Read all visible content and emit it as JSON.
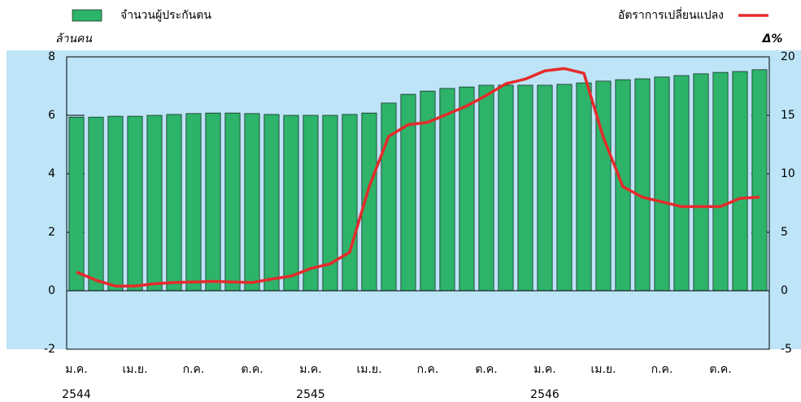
{
  "chart_data": {
    "type": "bar_line",
    "ylabel": "ล้านคน",
    "y2label": "Δ%",
    "categories": [
      "ม.ค.",
      null,
      null,
      "เม.ย.",
      null,
      null,
      "ก.ค.",
      null,
      null,
      "ต.ค.",
      null,
      null,
      "ม.ค.",
      null,
      null,
      "เม.ย.",
      null,
      null,
      "ก.ค.",
      null,
      null,
      "ต.ค.",
      null,
      null,
      "ม.ค.",
      null,
      null,
      "เม.ย.",
      null,
      null,
      "ก.ค.",
      null,
      null,
      "ต.ค.",
      null,
      null
    ],
    "years": [
      "2544",
      null,
      null,
      null,
      null,
      null,
      null,
      null,
      null,
      null,
      null,
      null,
      "2545",
      null,
      null,
      null,
      null,
      null,
      null,
      null,
      null,
      null,
      null,
      null,
      "2546",
      null,
      null,
      null,
      null,
      null,
      null,
      null,
      null,
      null,
      null,
      null
    ],
    "series": [
      {
        "name": "จำนวนผู้ประกันตน",
        "color": "#2db36a",
        "chart": "bar",
        "values": [
          5.94,
          5.94,
          5.97,
          5.97,
          6.0,
          6.03,
          6.06,
          6.08,
          6.08,
          6.06,
          6.03,
          6.0,
          6.0,
          6.0,
          6.03,
          6.08,
          6.42,
          6.72,
          6.83,
          6.92,
          6.97,
          7.03,
          7.03,
          7.03,
          7.03,
          7.06,
          7.11,
          7.17,
          7.22,
          7.25,
          7.31,
          7.36,
          7.42,
          7.47,
          7.5,
          7.56
        ]
      },
      {
        "name": "อัตราการเปลี่ยนแปลง",
        "color": "#e52b2b",
        "chart": "line",
        "axis": "y2",
        "values": [
          1.6,
          0.9,
          0.4,
          0.4,
          0.6,
          0.7,
          0.75,
          0.8,
          0.75,
          0.7,
          1.0,
          1.25,
          1.9,
          2.3,
          3.3,
          8.9,
          13.2,
          14.2,
          14.4,
          15.1,
          15.8,
          16.7,
          17.7,
          18.1,
          18.8,
          19.0,
          18.6,
          13.1,
          8.9,
          8.0,
          7.6,
          7.2,
          7.2,
          7.2,
          7.9,
          8.0
        ]
      }
    ],
    "ylim": [
      -2,
      8
    ],
    "yticks": [
      -2,
      0,
      2,
      4,
      6,
      8
    ],
    "y2lim": [
      -5,
      20
    ],
    "y2ticks": [
      -5,
      0,
      5,
      10,
      15,
      20
    ],
    "background": "#bde4f7"
  }
}
